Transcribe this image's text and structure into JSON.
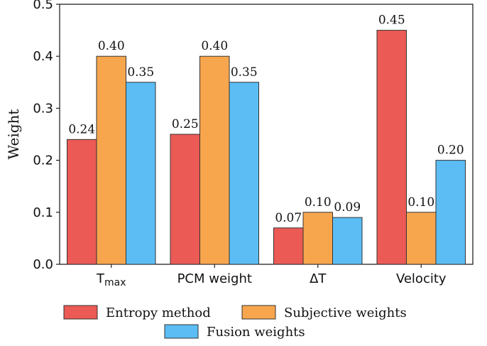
{
  "chart_data": {
    "type": "bar",
    "title": "",
    "xlabel": "",
    "ylabel": "Weight",
    "ylim": [
      0,
      0.5
    ],
    "yticks": [
      "0.0",
      "0.1",
      "0.2",
      "0.3",
      "0.4",
      "0.5"
    ],
    "grid": false,
    "legend_position": "bottom",
    "categories": [
      {
        "main": "T",
        "sub": "max"
      },
      {
        "main": "PCM weight",
        "sub": ""
      },
      {
        "main": "ΔT",
        "sub": ""
      },
      {
        "main": "Velocity",
        "sub": ""
      }
    ],
    "series": [
      {
        "name": "Entropy method",
        "color": "#EB5A55",
        "values": [
          0.24,
          0.25,
          0.07,
          0.45
        ],
        "labels": [
          "0.24",
          "0.25",
          "0.07",
          "0.45"
        ]
      },
      {
        "name": "Subjective weights",
        "color": "#F7A64E",
        "values": [
          0.4,
          0.4,
          0.1,
          0.1
        ],
        "labels": [
          "0.40",
          "0.40",
          "0.10",
          "0.10"
        ]
      },
      {
        "name": "Fusion weights",
        "color": "#5BBDF4",
        "values": [
          0.35,
          0.35,
          0.09,
          0.2
        ],
        "labels": [
          "0.35",
          "0.35",
          "0.09",
          "0.20"
        ]
      }
    ]
  }
}
